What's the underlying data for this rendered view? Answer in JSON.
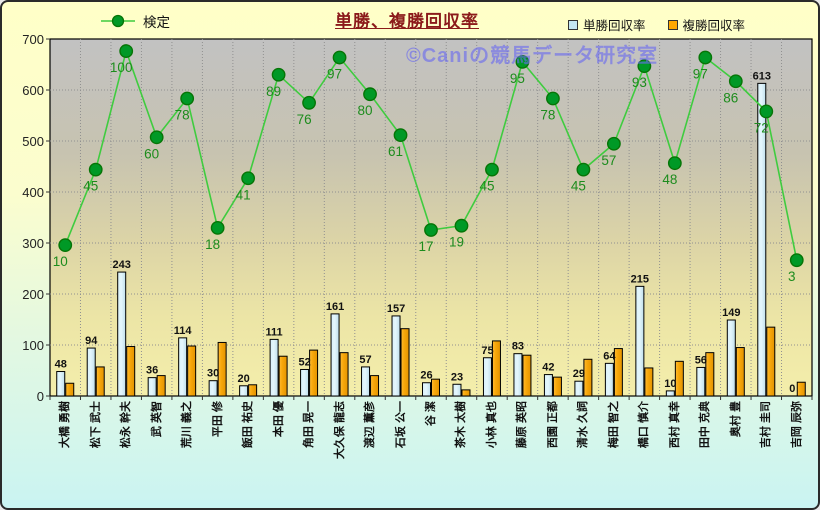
{
  "title": "単勝、複勝回収率",
  "watermark": "©Caniの競馬データ研究室",
  "legend": {
    "line": "検定",
    "bar_win": "単勝回収率",
    "bar_place": "複勝回収率"
  },
  "colors": {
    "title": "#8b1a1a",
    "watermark": "#6a6af0",
    "line": "#3fcc3f",
    "marker_fill": "#009926",
    "marker_edge": "#067506",
    "line_label": "#1d8c1d",
    "bar_win_fill_light": "#d9f1fa",
    "bar_win_fill": "#bfdfec",
    "bar_place_fill_light": "#ffbb33",
    "bar_place_fill": "#e39300",
    "bar_edge": "#000000",
    "bar_label": "#111111",
    "grid": "#909090",
    "plot_top": "#c2c2c2",
    "plot_bottom": "#f4eeab"
  },
  "y_axis": {
    "min": 0,
    "max": 700,
    "step": 100
  },
  "chart_data": {
    "type": "bar",
    "title": "単勝、複勝回収率",
    "categories": [
      "大橋 勇樹",
      "松下 武士",
      "松永 幹夫",
      "武 英智",
      "荒川 義之",
      "平田 修",
      "飯田 祐史",
      "本田 優",
      "角田 晃一",
      "大久保 龍志",
      "渡辺 薫彦",
      "石坂 公一",
      "谷 潔",
      "茶木 太樹",
      "小林 真也",
      "藤原 英昭",
      "西園 正都",
      "清水 久詞",
      "梅田 智之",
      "橋口 慎介",
      "西村 真幸",
      "田中 克典",
      "奥村 豊",
      "吉村 圭司",
      "吉岡 辰弥"
    ],
    "series": [
      {
        "name": "検定",
        "type": "line",
        "axis": "secondary",
        "data_labels": true,
        "values": [
          10,
          45,
          100,
          60,
          78,
          18,
          41,
          89,
          76,
          97,
          80,
          61,
          17,
          19,
          45,
          95,
          78,
          45,
          57,
          93,
          48,
          97,
          86,
          72,
          3
        ]
      },
      {
        "name": "単勝回収率",
        "type": "bar",
        "axis": "primary",
        "data_labels": true,
        "values": [
          48,
          94,
          243,
          36,
          114,
          30,
          20,
          111,
          52,
          161,
          57,
          157,
          26,
          23,
          75,
          83,
          42,
          29,
          64,
          215,
          10,
          56,
          149,
          613,
          0
        ]
      },
      {
        "name": "複勝回収率",
        "type": "bar",
        "axis": "primary",
        "data_labels": false,
        "values": [
          25,
          57,
          97,
          40,
          98,
          105,
          22,
          78,
          90,
          85,
          40,
          132,
          33,
          12,
          108,
          80,
          37,
          72,
          93,
          55,
          68,
          85,
          95,
          135,
          27
        ]
      }
    ],
    "ylim": [
      0,
      700
    ],
    "y_step": 100,
    "secondary_ylim": [
      -60,
      105.6
    ],
    "grid": "dotted",
    "legend_position": "top"
  }
}
